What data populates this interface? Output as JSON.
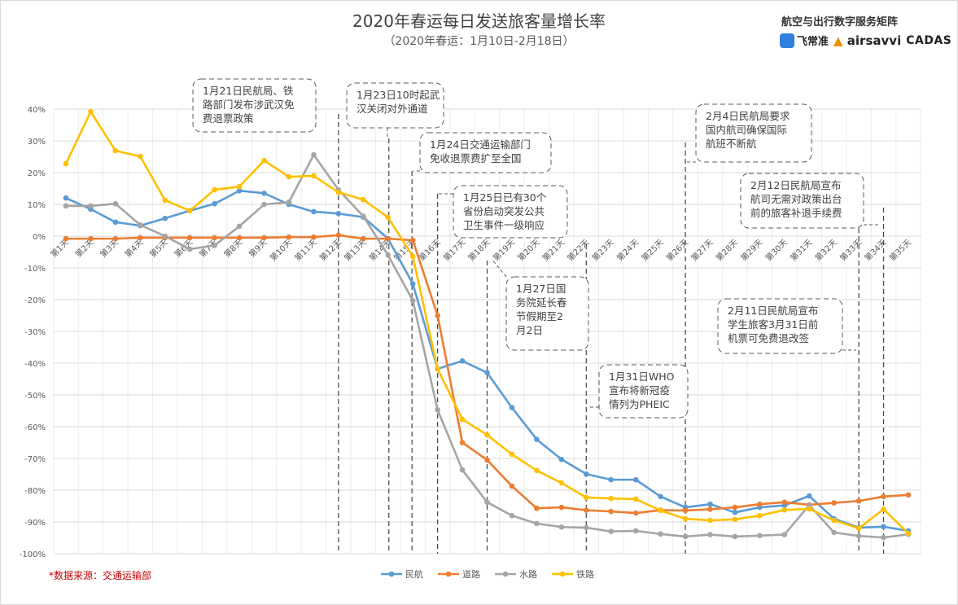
{
  "chart_data": {
    "type": "line",
    "title": "2020年春运每日发送旅客量增长率",
    "subtitle": "（2020年春运：1月10日-2月18日）",
    "ylim": [
      -100,
      40
    ],
    "yticks": [
      "40%",
      "30%",
      "20%",
      "10%",
      "0%",
      "-10%",
      "-20%",
      "-30%",
      "-40%",
      "-50%",
      "-60%",
      "-70%",
      "-80%",
      "-90%",
      "-100%"
    ],
    "categories": [
      "第1天",
      "第2天",
      "第3天",
      "第4天",
      "第5天",
      "第6天",
      "第7天",
      "第8天",
      "第9天",
      "第10天",
      "第11天",
      "第12天",
      "第13天",
      "第14天",
      "第15天",
      "第16天",
      "第17天",
      "第18天",
      "第19天",
      "第20天",
      "第21天",
      "第22天",
      "第23天",
      "第24天",
      "第25天",
      "第26天",
      "第27天",
      "第28天",
      "第29天",
      "第30天",
      "第31天",
      "第32天",
      "第33天",
      "第34天",
      "第35天"
    ],
    "grid": true,
    "legend_position": "bottom",
    "series": [
      {
        "name": "民航",
        "color": "#5b9bd5",
        "values": [
          12,
          8.5,
          4.4,
          3.3,
          5.6,
          8,
          10.2,
          14.3,
          13.5,
          10,
          7.7,
          7.1,
          6,
          -0.8,
          -15,
          -41.8,
          -39.3,
          -43,
          -54,
          -64,
          -70.3,
          -74.9,
          -76.7,
          -76.7,
          -82,
          -85.4,
          -84.4,
          -87,
          -85.4,
          -84.8,
          -81.8,
          -89,
          -91.8,
          -91.5,
          -92.8
        ]
      },
      {
        "name": "道路",
        "color": "#ed7d31",
        "values": [
          -0.8,
          -0.8,
          -0.8,
          -0.5,
          -0.5,
          -0.5,
          -0.5,
          -0.5,
          -0.5,
          -0.3,
          -0.3,
          0.3,
          -0.8,
          -0.8,
          -1.3,
          -25,
          -65,
          -70.5,
          -78.7,
          -85.7,
          -85.4,
          -86.3,
          -86.7,
          -87.2,
          -86.3,
          -86.4,
          -86,
          -85.4,
          -84.4,
          -83.8,
          -84.6,
          -84,
          -83.4,
          -82,
          -81.5
        ]
      },
      {
        "name": "水路",
        "color": "#a5a5a5",
        "values": [
          9.5,
          9.5,
          10.2,
          3.5,
          0,
          -4.1,
          -2.9,
          3.1,
          10,
          10.7,
          25.6,
          14.6,
          6.3,
          -6,
          -20.3,
          -54.7,
          -73.6,
          -83.8,
          -88,
          -90.5,
          -91.6,
          -91.8,
          -93,
          -92.8,
          -93.8,
          -94.6,
          -94,
          -94.6,
          -94.3,
          -94,
          -84.7,
          -93.3,
          -94.4,
          -94.9,
          -93.9
        ]
      },
      {
        "name": "铁路",
        "color": "#ffc000",
        "values": [
          22.8,
          39.2,
          26.9,
          25.1,
          11.3,
          8,
          14.6,
          15.6,
          23.8,
          18.7,
          19,
          13.8,
          11.5,
          5.9,
          -6.4,
          -41.8,
          -57.7,
          -62.6,
          -68.7,
          -73.8,
          -77.7,
          -82.3,
          -82.6,
          -82.8,
          -86.4,
          -89,
          -89.5,
          -89.2,
          -88,
          -86.2,
          -85.9,
          -89.5,
          -92,
          -86,
          -93.6
        ]
      }
    ],
    "event_lines_day": [
      12,
      14,
      15,
      16,
      18,
      22,
      26,
      33,
      34
    ],
    "annotations": [
      {
        "lines": [
          "1月21日民航局、铁",
          "路部门发布涉武汉免",
          "费退票政策"
        ]
      },
      {
        "lines": [
          "1月23日10时起武",
          "汉关闭对外通道"
        ]
      },
      {
        "lines": [
          "1月24日交通运输部门",
          "免收退票费扩至全国"
        ]
      },
      {
        "lines": [
          "1月25日已有30个",
          "省份启动突发公共",
          "卫生事件一级响应"
        ]
      },
      {
        "lines": [
          "1月27日国",
          "务院延长春",
          "节假期至2",
          "月2日"
        ]
      },
      {
        "lines": [
          "1月31日WHO",
          "宣布将新冠疫",
          "情列为PHEIC"
        ]
      },
      {
        "lines": [
          "2月4日民航局要求",
          "国内航司确保国际",
          "航班不断航"
        ]
      },
      {
        "lines": [
          "2月12日民航局宣布",
          "航司无需对政策出台",
          "前的旅客补退手续费"
        ]
      },
      {
        "lines": [
          "2月11日民航局宣布",
          "学生旅客3月31日前",
          "机票可免费退改签"
        ]
      }
    ]
  },
  "brand": {
    "tagline": "航空与出行数字服务矩阵",
    "logos": [
      "飞常准",
      "airsavvi",
      "CADAS"
    ]
  },
  "source": "*数据来源：交通运输部"
}
